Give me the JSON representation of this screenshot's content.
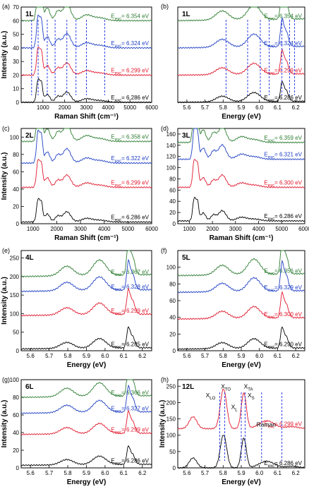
{
  "colors": {
    "green": "#2e7d32",
    "blue": "#1f3fc4",
    "red": "#e0182d",
    "black": "#000000",
    "dashed": "#1a2ee0"
  },
  "chart_data": [
    {
      "panel": "(a)",
      "layer": "1L",
      "type": "line",
      "xlabel": "Raman Shift (cm⁻¹)",
      "ylabel": "Intensity (a.u.)",
      "xlim": [
        0,
        6000
      ],
      "ylim": [
        0,
        70
      ],
      "xticks": [
        "1000",
        "2000",
        "3000",
        "4000",
        "5000",
        "6000"
      ],
      "yticks": [
        "0",
        "10",
        "20",
        "30",
        "40",
        "50",
        "60",
        "70"
      ],
      "series": [
        {
          "label": "E_exc= 6.354 eV",
          "exc": "6.354 eV",
          "color": "green",
          "baseline": 60
        },
        {
          "label": "E_exc= 6.324 eV",
          "exc": "6.324 eV",
          "color": "blue",
          "baseline": 40
        },
        {
          "label": "E_exc= 6.299 eV",
          "exc": "6.299 eV",
          "color": "red",
          "baseline": 20
        },
        {
          "label": "E_exc= 6.286 eV",
          "exc": "6.286 eV",
          "color": "black",
          "baseline": 0
        }
      ]
    },
    {
      "panel": "(b)",
      "layer": "1L",
      "type": "line",
      "xlabel": "Energy (eV)",
      "ylabel": "",
      "xlim": [
        5.55,
        6.25
      ],
      "ylim": [
        0,
        70
      ],
      "xticks": [
        "5.6",
        "5.7",
        "5.8",
        "5.9",
        "6.0",
        "6.1",
        "6.2"
      ],
      "yticks": [],
      "series": [
        {
          "label": "E_exc= 6.354 eV",
          "exc": "6.354 eV",
          "color": "green",
          "baseline": 60
        },
        {
          "label": "E_exc= 6.324 eV",
          "exc": "6.324 eV",
          "color": "blue",
          "baseline": 40
        },
        {
          "label": "E_exc= 6.299 eV",
          "exc": "6.299 eV",
          "color": "red",
          "baseline": 20
        },
        {
          "label": "E_exc= 6.286 eV",
          "exc": "6.286 eV",
          "color": "black",
          "baseline": 0
        }
      ]
    },
    {
      "panel": "(c)",
      "layer": "2L",
      "type": "line",
      "xlabel": "Raman Shift (cm⁻¹)",
      "ylabel": "Intensity (a.u.)",
      "xlim": [
        500,
        6000
      ],
      "ylim": [
        0,
        110
      ],
      "xticks": [
        "1000",
        "2000",
        "3000",
        "4000",
        "5000",
        "6000"
      ],
      "yticks": [
        "0",
        "20",
        "40",
        "60",
        "80",
        "100"
      ],
      "series": [
        {
          "label": "E_exc= 6.358 eV",
          "exc": "6.358 eV",
          "color": "green",
          "baseline": 95
        },
        {
          "label": "E_exc= 6.322 eV",
          "exc": "6.322 eV",
          "color": "blue",
          "baseline": 70
        },
        {
          "label": "E_exc= 6.299 eV",
          "exc": "6.299 eV",
          "color": "red",
          "baseline": 42
        },
        {
          "label": "E_exc= 6.286 eV",
          "exc": "6.286 eV",
          "color": "black",
          "baseline": 2
        }
      ]
    },
    {
      "panel": "(d)",
      "layer": "3L",
      "type": "line",
      "xlabel": "Raman Shift (cm⁻¹)",
      "ylabel": "",
      "xlim": [
        500,
        6000
      ],
      "ylim": [
        0,
        170
      ],
      "xticks": [
        "1000",
        "2000",
        "3000",
        "4000",
        "5000",
        "6000"
      ],
      "yticks": [
        "0",
        "20",
        "40",
        "60",
        "80",
        "100",
        "120",
        "140",
        "160"
      ],
      "series": [
        {
          "label": "E_exc= 6.359 eV",
          "exc": "6.359 eV",
          "color": "green",
          "baseline": 145
        },
        {
          "label": "E_exc= 6.321 eV",
          "exc": "6.321 eV",
          "color": "blue",
          "baseline": 115
        },
        {
          "label": "E_exc= 6.300 eV",
          "exc": "6.300 eV",
          "color": "red",
          "baseline": 65
        },
        {
          "label": "E_exc= 6.286 eV",
          "exc": "6.286 eV",
          "color": "black",
          "baseline": 5
        }
      ]
    },
    {
      "panel": "(e)",
      "layer": "4L",
      "type": "line",
      "xlabel": "Energy (eV)",
      "ylabel": "Intensity (a.u.)",
      "xlim": [
        5.55,
        6.25
      ],
      "ylim": [
        0,
        270
      ],
      "xticks": [
        "5.6",
        "5.7",
        "5.8",
        "5.9",
        "6.0",
        "6.1",
        "6.2"
      ],
      "yticks": [
        "0",
        "50",
        "100",
        "150",
        "200",
        "250"
      ],
      "series": [
        {
          "label": "E_exc= 6.367 eV",
          "exc": "6.367 eV",
          "color": "green",
          "baseline": 200
        },
        {
          "label": "E_exc= 6.328 eV",
          "exc": "6.328 eV",
          "color": "blue",
          "baseline": 160
        },
        {
          "label": "E_exc= 6.299 eV",
          "exc": "6.299 eV",
          "color": "red",
          "baseline": 95
        },
        {
          "label": "E_exc= 6.285 eV",
          "exc": "6.285 eV",
          "color": "black",
          "baseline": 5
        }
      ]
    },
    {
      "panel": "(f)",
      "layer": "5L",
      "type": "line",
      "xlabel": "Energy (eV)",
      "ylabel": "",
      "xlim": [
        5.55,
        6.25
      ],
      "ylim": [
        0,
        120
      ],
      "xticks": [
        "5.6",
        "5.7",
        "5.8",
        "5.9",
        "6.0",
        "6.1",
        "6.2"
      ],
      "yticks": [
        "0",
        "20",
        "40",
        "60",
        "80",
        "100"
      ],
      "series": [
        {
          "label": "E_exc= 6.356 eV",
          "exc": "6.356 eV",
          "color": "green",
          "baseline": 90
        },
        {
          "label": "E_exc= 6.329 eV",
          "exc": "6.329 eV",
          "color": "blue",
          "baseline": 70
        },
        {
          "label": "E_exc= 6.300 eV",
          "exc": "6.300 eV",
          "color": "red",
          "baseline": 38
        },
        {
          "label": "E_exc= 6.290 eV",
          "exc": "6.290 eV",
          "color": "black",
          "baseline": 2
        }
      ]
    },
    {
      "panel": "(g)",
      "layer": "6L",
      "type": "line",
      "xlabel": "Energy (eV)",
      "ylabel": "Intensity (a.u.)",
      "xlim": [
        5.55,
        6.25
      ],
      "ylim": [
        0,
        100
      ],
      "xticks": [
        "5.6",
        "5.7",
        "5.8",
        "5.9",
        "6.0",
        "6.1",
        "6.2"
      ],
      "yticks": [
        "0",
        "20",
        "40",
        "60",
        "80",
        "100"
      ],
      "series": [
        {
          "label": "E_exc= 6.366 eV",
          "exc": "6.366 eV",
          "color": "green",
          "baseline": 80
        },
        {
          "label": "E_exc= 6.327 eV",
          "exc": "6.327 eV",
          "color": "blue",
          "baseline": 62
        },
        {
          "label": "E_exc= 6.299 eV",
          "exc": "6.299 eV",
          "color": "red",
          "baseline": 38
        },
        {
          "label": "E_exc= 6.286 eV",
          "exc": "6.286 eV",
          "color": "black",
          "baseline": 3
        }
      ]
    },
    {
      "panel": "(h)",
      "layer": "12L",
      "type": "line",
      "xlabel": "Energy (eV)",
      "ylabel": "Intensity (a.u.)",
      "xlim": [
        5.55,
        6.25
      ],
      "ylim": [
        0,
        270
      ],
      "xticks": [
        "5.6",
        "5.7",
        "5.8",
        "5.9",
        "6.0",
        "6.1",
        "6.2"
      ],
      "yticks": [
        "0",
        "50",
        "100",
        "150",
        "200",
        "250"
      ],
      "annotations": [
        "X_TO",
        "X_LO",
        "X_TA",
        "X_S",
        "X_L",
        "Raman"
      ],
      "series": [
        {
          "label": "E_exc= 6.299 eV",
          "exc": "6.299 eV",
          "color": "red",
          "baseline": 120
        },
        {
          "label": "E_exc= 6.286 eV",
          "exc": "6.286 eV",
          "color": "black",
          "baseline": 0
        }
      ]
    }
  ]
}
